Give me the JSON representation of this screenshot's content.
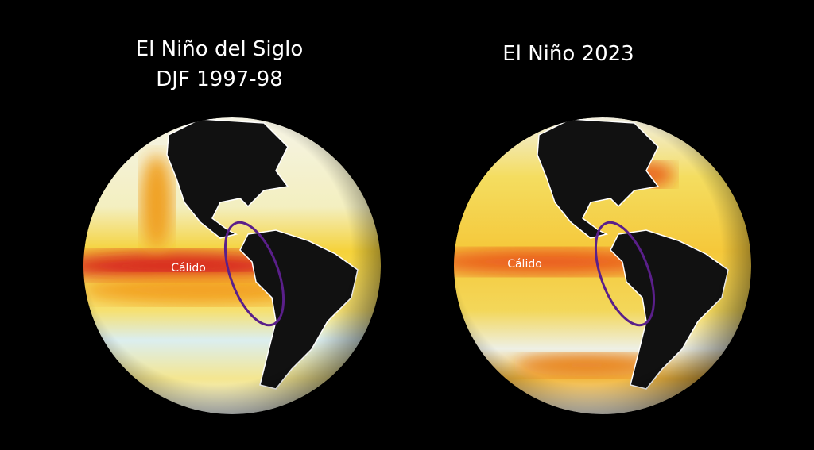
{
  "panels": [
    {
      "title": "El Niño del Siglo",
      "subtitle": "DJF 1997-98",
      "label": "Cálido"
    },
    {
      "title": "El Niño 2023",
      "label": "Cálido"
    }
  ]
}
